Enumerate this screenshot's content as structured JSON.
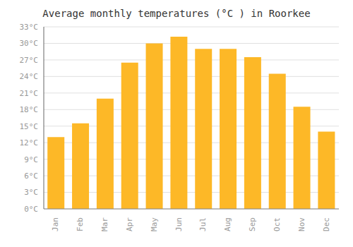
{
  "chart_data": {
    "type": "bar",
    "title": "Average monthly temperatures (°C ) in Roorkee",
    "categories": [
      "Jan",
      "Feb",
      "Mar",
      "Apr",
      "May",
      "Jun",
      "Jul",
      "Aug",
      "Sep",
      "Oct",
      "Nov",
      "Dec"
    ],
    "values": [
      13.0,
      15.5,
      20.0,
      26.5,
      30.0,
      31.2,
      29.0,
      29.0,
      27.5,
      24.5,
      18.5,
      14.0
    ],
    "color": "#FDB827",
    "ylim": [
      0,
      33
    ],
    "yticks": [
      {
        "value": 0,
        "label": "0°C"
      },
      {
        "value": 3,
        "label": "3°C"
      },
      {
        "value": 6,
        "label": "6°C"
      },
      {
        "value": 9,
        "label": "9°C"
      },
      {
        "value": 12,
        "label": "12°C"
      },
      {
        "value": 15,
        "label": "15°C"
      },
      {
        "value": 18,
        "label": "18°C"
      },
      {
        "value": 21,
        "label": "21°C"
      },
      {
        "value": 24,
        "label": "24°C"
      },
      {
        "value": 27,
        "label": "27°C"
      },
      {
        "value": 30,
        "label": "30°C"
      },
      {
        "value": 33,
        "label": "33°C"
      }
    ],
    "grid": true
  }
}
